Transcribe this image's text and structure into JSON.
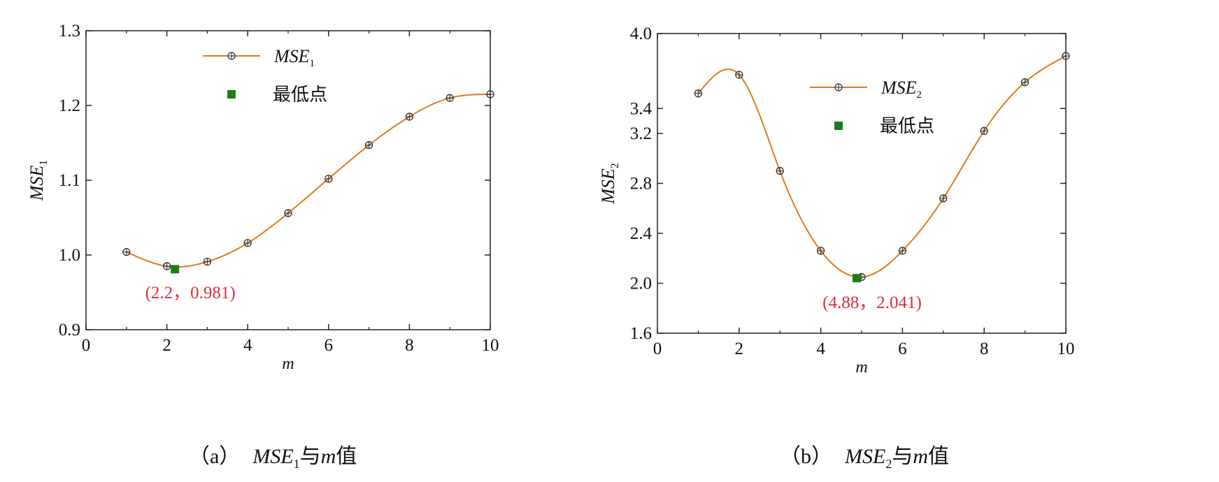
{
  "chart_data": [
    {
      "type": "line",
      "xlabel": "m",
      "ylabel": "MSE",
      "ylabel_sub": "1",
      "xlim": [
        0,
        10
      ],
      "ylim": [
        0.9,
        1.3
      ],
      "xticks": [
        0,
        2,
        4,
        6,
        8,
        10
      ],
      "yticks": [
        0.9,
        1.0,
        1.1,
        1.2,
        1.3
      ],
      "ytick_labels": [
        "0.9",
        "1.0",
        "1.1",
        "1.2",
        "1.3"
      ],
      "series": [
        {
          "name": "MSE",
          "name_sub": "1",
          "color": "#e07b1a",
          "x": [
            1,
            2,
            3,
            4,
            5,
            6,
            7,
            8,
            9,
            10
          ],
          "y": [
            1.004,
            0.985,
            0.991,
            1.016,
            1.056,
            1.102,
            1.147,
            1.185,
            1.21,
            1.215
          ]
        }
      ],
      "minimum": {
        "label": "最低点",
        "x": 2.2,
        "y": 0.981,
        "color": "#1a7f1a",
        "annotation": "(2.2，0.981)",
        "annotation_color": "#d0313a"
      },
      "legend_position": "top-center",
      "caption": {
        "label": "（a）",
        "var": "MSE",
        "sub": "1",
        "text": "与",
        "m": "m",
        "tail": "值"
      }
    },
    {
      "type": "line",
      "xlabel": "m",
      "ylabel": "MSE",
      "ylabel_sub": "2",
      "xlim": [
        0,
        10
      ],
      "ylim": [
        1.6,
        4.0
      ],
      "xticks": [
        0,
        2,
        4,
        6,
        8,
        10
      ],
      "yticks": [
        1.6,
        2.0,
        2.4,
        2.8,
        3.2,
        3.4,
        4.0
      ],
      "ytick_labels": [
        "1.6",
        "2.0",
        "2.4",
        "2.8",
        "3.2",
        "3.4",
        "4.0"
      ],
      "series": [
        {
          "name": "MSE",
          "name_sub": "2",
          "color": "#e07b1a",
          "x": [
            1,
            2,
            3,
            4,
            5,
            6,
            7,
            8,
            9,
            10
          ],
          "y": [
            3.52,
            3.67,
            2.9,
            2.26,
            2.05,
            2.26,
            2.68,
            3.22,
            3.61,
            3.82
          ]
        }
      ],
      "minimum": {
        "label": "最低点",
        "x": 4.88,
        "y": 2.041,
        "color": "#1a7f1a",
        "annotation": "(4.88，2.041)",
        "annotation_color": "#d0313a"
      },
      "legend_position": "top-center",
      "caption": {
        "label": "（b）",
        "var": "MSE",
        "sub": "2",
        "text": "与",
        "m": "m",
        "tail": "值"
      }
    }
  ]
}
